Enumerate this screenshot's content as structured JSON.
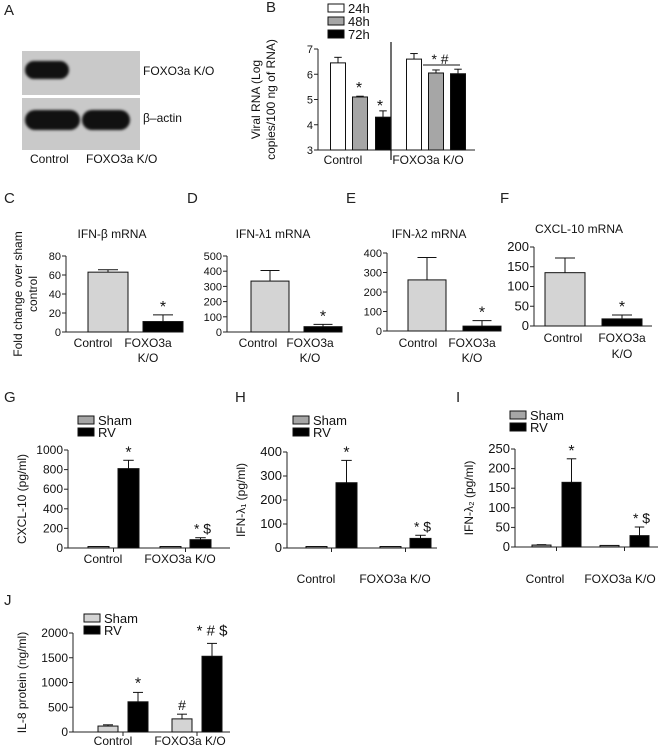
{
  "panels": {
    "A": {
      "letter": "A",
      "blot_labels": [
        "FOXO3a K/O",
        "β–actin"
      ],
      "lane_labels": [
        "Control",
        "FOXO3a K/O"
      ]
    },
    "B": {
      "letter": "B"
    },
    "C": {
      "letter": "C"
    },
    "D": {
      "letter": "D"
    },
    "E": {
      "letter": "E"
    },
    "F": {
      "letter": "F"
    },
    "G": {
      "letter": "G"
    },
    "H": {
      "letter": "H"
    },
    "I": {
      "letter": "I"
    },
    "J": {
      "letter": "J"
    }
  },
  "colors": {
    "white_bar": "#ffffff",
    "gray_bar": "#a6a6a6",
    "light_gray_bar": "#d4d4d4",
    "black_bar": "#000000",
    "axis": "#111111"
  },
  "chart_data": [
    {
      "id": "B",
      "type": "bar",
      "title": "",
      "ylabel": "Viral RNA (Log copies/100 ng of RNA)",
      "xlabel": "",
      "categories": [
        "Control",
        "FOXO3a K/O"
      ],
      "ylim": [
        3,
        7
      ],
      "yticks": [
        3,
        4,
        5,
        6,
        7
      ],
      "legend": [
        "24h",
        "48h",
        "72h"
      ],
      "legend_position": "top-left",
      "series": [
        {
          "name": "24h",
          "values": [
            6.45,
            6.6
          ],
          "errors": [
            0.22,
            0.22
          ],
          "color": "#ffffff"
        },
        {
          "name": "48h",
          "values": [
            5.1,
            6.05
          ],
          "errors": [
            0.03,
            0.12
          ],
          "color": "#a6a6a6"
        },
        {
          "name": "72h",
          "values": [
            4.3,
            6.02
          ],
          "errors": [
            0.25,
            0.18
          ],
          "color": "#000000"
        }
      ],
      "annotations": [
        "*",
        "*",
        "* #"
      ]
    },
    {
      "id": "C",
      "type": "bar",
      "title": "IFN-β mRNA",
      "ylabel": "Fold change over sham control",
      "categories": [
        "Control",
        "FOXO3a K/O"
      ],
      "ylim": [
        0,
        80
      ],
      "yticks": [
        0,
        20,
        40,
        60,
        80
      ],
      "values": [
        63,
        11
      ],
      "errors": [
        2.5,
        7
      ],
      "colors": [
        "#d4d4d4",
        "#000000"
      ],
      "annotations": [
        "",
        "*"
      ]
    },
    {
      "id": "D",
      "type": "bar",
      "title": "IFN-λ1 mRNA",
      "ylabel": "",
      "categories": [
        "Control",
        "FOXO3a K/O"
      ],
      "ylim": [
        0,
        500
      ],
      "yticks": [
        0,
        100,
        200,
        300,
        400,
        500
      ],
      "values": [
        335,
        35
      ],
      "errors": [
        70,
        15
      ],
      "colors": [
        "#d4d4d4",
        "#000000"
      ],
      "annotations": [
        "",
        "*"
      ]
    },
    {
      "id": "E",
      "type": "bar",
      "title": "IFN-λ2 mRNA",
      "ylabel": "",
      "categories": [
        "Control",
        "FOXO3a K/O"
      ],
      "ylim": [
        0,
        400
      ],
      "yticks": [
        0,
        100,
        200,
        300,
        400
      ],
      "values": [
        262,
        25
      ],
      "errors": [
        115,
        28
      ],
      "colors": [
        "#d4d4d4",
        "#000000"
      ],
      "annotations": [
        "",
        "*"
      ]
    },
    {
      "id": "F",
      "type": "bar",
      "title": "CXCL-10 mRNA",
      "ylabel": "",
      "categories": [
        "Control",
        "FOXO3a K/O"
      ],
      "ylim": [
        0,
        200
      ],
      "yticks": [
        0,
        50,
        100,
        150,
        200
      ],
      "values": [
        135,
        18
      ],
      "errors": [
        37,
        10
      ],
      "colors": [
        "#d4d4d4",
        "#000000"
      ],
      "annotations": [
        "",
        "*"
      ]
    },
    {
      "id": "G",
      "type": "bar",
      "title": "",
      "ylabel": "CXCL-10 (pg/ml)",
      "categories": [
        "Control",
        "FOXO3a K/O"
      ],
      "ylim": [
        0,
        1000
      ],
      "yticks": [
        0,
        200,
        400,
        600,
        800,
        1000
      ],
      "legend": [
        "Sham",
        "RV"
      ],
      "legend_position": "top-left",
      "series": [
        {
          "name": "Sham",
          "values": [
            5,
            5
          ],
          "errors": [
            0,
            0
          ],
          "color": "#a6a6a6"
        },
        {
          "name": "RV",
          "values": [
            810,
            85
          ],
          "errors": [
            85,
            20
          ],
          "color": "#000000"
        }
      ],
      "annotations": [
        "*",
        "* $"
      ]
    },
    {
      "id": "H",
      "type": "bar",
      "title": "",
      "ylabel": "IFN-λ1 (pg/ml)",
      "categories": [
        "Control",
        "FOXO3a K/O"
      ],
      "ylim": [
        0,
        400
      ],
      "yticks": [
        0,
        100,
        200,
        300,
        400
      ],
      "legend": [
        "Sham",
        "RV"
      ],
      "legend_position": "top-left",
      "series": [
        {
          "name": "Sham",
          "values": [
            2,
            2
          ],
          "errors": [
            0,
            0
          ],
          "color": "#a6a6a6"
        },
        {
          "name": "RV",
          "values": [
            272,
            40
          ],
          "errors": [
            93,
            13
          ],
          "color": "#000000"
        }
      ],
      "annotations": [
        "*",
        "* $"
      ]
    },
    {
      "id": "I",
      "type": "bar",
      "title": "",
      "ylabel": "IFN-λ2 (pg/ml)",
      "categories": [
        "Control",
        "FOXO3a K/O"
      ],
      "ylim": [
        0,
        250
      ],
      "yticks": [
        0,
        50,
        100,
        150,
        200,
        250
      ],
      "legend": [
        "Sham",
        "RV"
      ],
      "legend_position": "top-left",
      "series": [
        {
          "name": "Sham",
          "values": [
            5,
            4
          ],
          "errors": [
            1,
            0
          ],
          "color": "#a6a6a6"
        },
        {
          "name": "RV",
          "values": [
            165,
            29
          ],
          "errors": [
            60,
            22
          ],
          "color": "#000000"
        }
      ],
      "annotations": [
        "*",
        "* $"
      ]
    },
    {
      "id": "J",
      "type": "bar",
      "title": "",
      "ylabel": "IL-8 protein (ng/ml)",
      "categories": [
        "Control",
        "FOXO3a K/O"
      ],
      "ylim": [
        0,
        2000
      ],
      "yticks": [
        0,
        500,
        1000,
        1500,
        2000
      ],
      "legend": [
        "Sham",
        "RV"
      ],
      "legend_position": "top-left",
      "series": [
        {
          "name": "Sham",
          "values": [
            120,
            265
          ],
          "errors": [
            25,
            95
          ],
          "color": "#d4d4d4"
        },
        {
          "name": "RV",
          "values": [
            610,
            1530
          ],
          "errors": [
            190,
            260
          ],
          "color": "#000000"
        }
      ],
      "annotations": [
        "",
        "#",
        "*",
        "* # $"
      ]
    }
  ]
}
